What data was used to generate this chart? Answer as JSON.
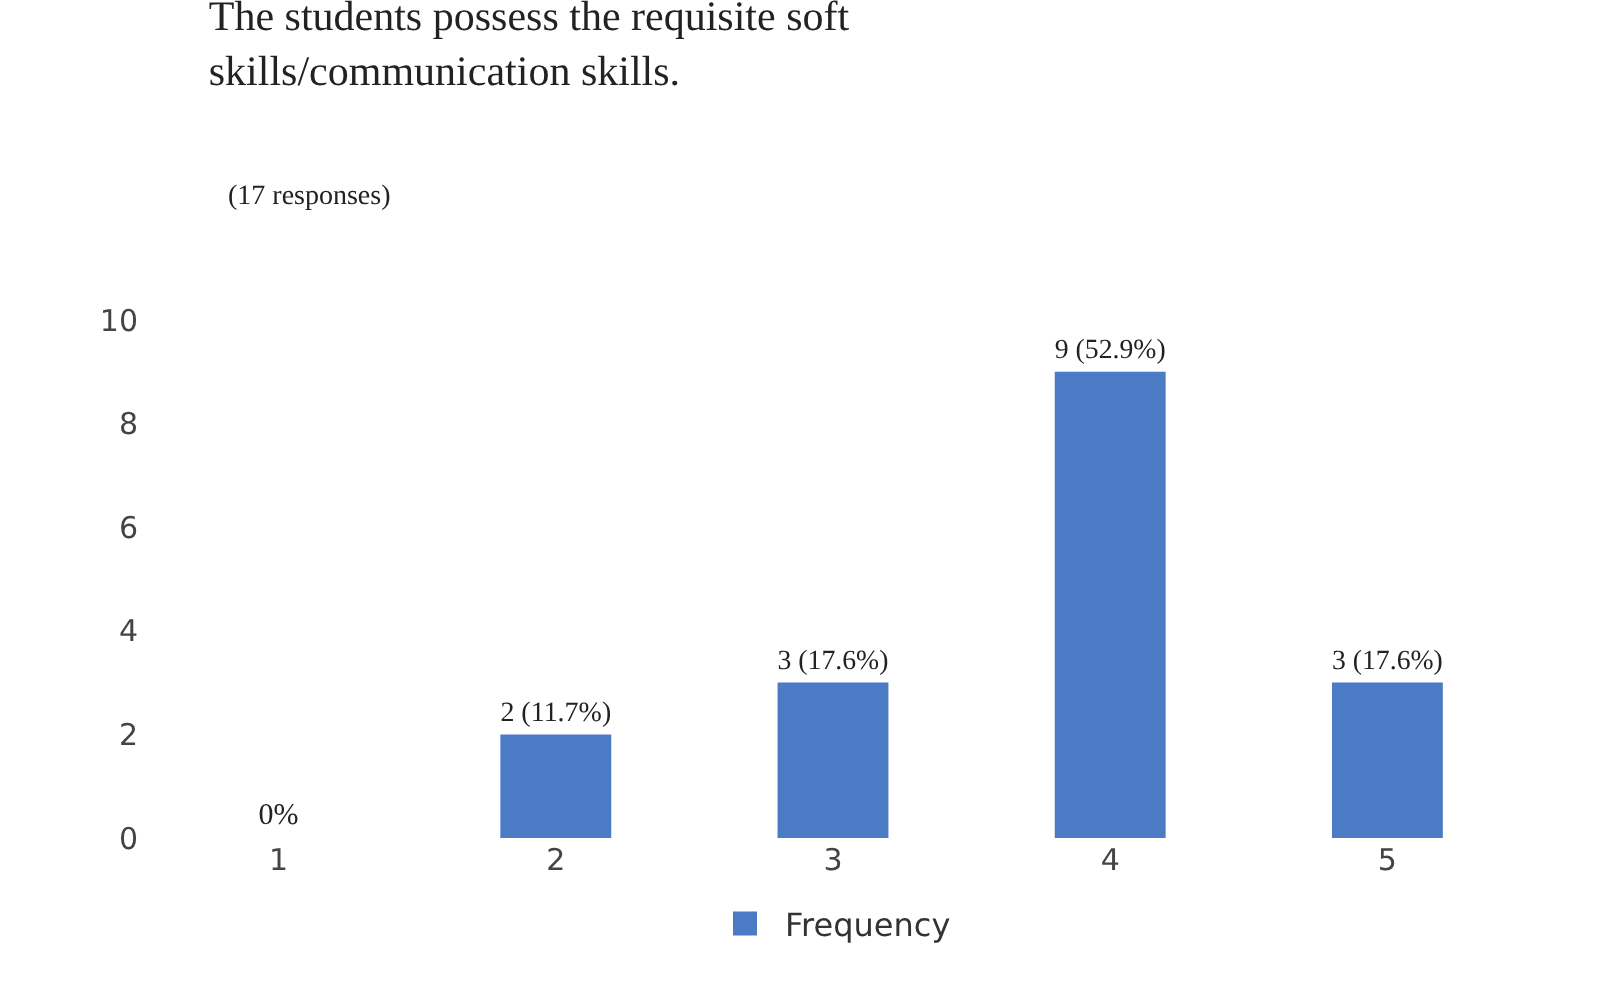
{
  "chart_data": {
    "type": "bar",
    "title": "The students possess the requisite soft skills/communication skills.",
    "subtitle": "(17 responses)",
    "categories": [
      "1",
      "2",
      "3",
      "4",
      "5"
    ],
    "series": [
      {
        "name": "Frequency",
        "color": "#4a7bc4",
        "values": [
          0,
          2,
          3,
          9,
          3
        ],
        "value_labels": [
          "0%",
          "2 (11.7%)",
          "3 (17.6%)",
          "9 (52.9%)",
          "3 (17.6%)"
        ]
      }
    ],
    "ylim": [
      0,
      10
    ],
    "yticks": [
      0,
      2,
      4,
      6,
      8,
      10
    ],
    "grid": false,
    "legend": "bottom"
  }
}
